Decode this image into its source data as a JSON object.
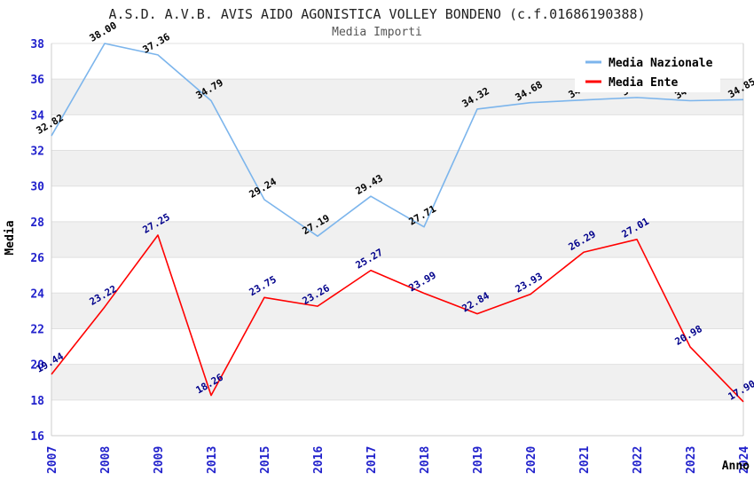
{
  "title": "A.S.D. A.V.B. AVIS AIDO AGONISTICA VOLLEY BONDENO (c.f.01686190388)",
  "subtitle": "Media Importi",
  "axes": {
    "y_label": "Media",
    "x_label": "Anno"
  },
  "legend": {
    "position": "top-right",
    "items": [
      {
        "label": "Media Nazionale",
        "color": "#7cb5ec"
      },
      {
        "label": "Media Ente",
        "color": "#ff0000"
      }
    ]
  },
  "ui_colors": {
    "band_gray": "#f0f0f0",
    "gridline": "#e0e0e0",
    "frame": "#cccccc",
    "tick_text": "#2222cc",
    "label_nazionale": "#000000",
    "label_ente": "#00008b",
    "legend_box": "#ffffff"
  },
  "chart_data": {
    "type": "line",
    "title": "A.S.D. A.V.B. AVIS AIDO AGONISTICA VOLLEY BONDENO (c.f.01686190388)",
    "subtitle": "Media Importi",
    "xlabel": "Anno",
    "ylabel": "Media",
    "ylim": [
      16,
      38
    ],
    "ytick_step": 2,
    "grid": "horizontal-bands-alternating",
    "legend_position": "top-right",
    "categories": [
      "2007",
      "2008",
      "2009",
      "2013",
      "2015",
      "2016",
      "2017",
      "2018",
      "2019",
      "2020",
      "2021",
      "2022",
      "2023",
      "2024"
    ],
    "series": [
      {
        "name": "Media Nazionale",
        "color": "#7cb5ec",
        "label_color": "#000000",
        "values": [
          32.82,
          38.0,
          37.36,
          34.79,
          29.24,
          27.19,
          29.43,
          27.71,
          34.32,
          34.68,
          34.83,
          34.97,
          34.79,
          34.85
        ],
        "note": "2022 and 2023 point labels are hidden behind the legend box; 2021 partially hidden"
      },
      {
        "name": "Media Ente",
        "color": "#ff0000",
        "label_color": "#00008b",
        "values": [
          19.44,
          23.22,
          27.25,
          18.26,
          23.75,
          23.26,
          25.27,
          23.99,
          22.84,
          23.93,
          26.29,
          27.01,
          20.98,
          17.9
        ]
      }
    ]
  }
}
